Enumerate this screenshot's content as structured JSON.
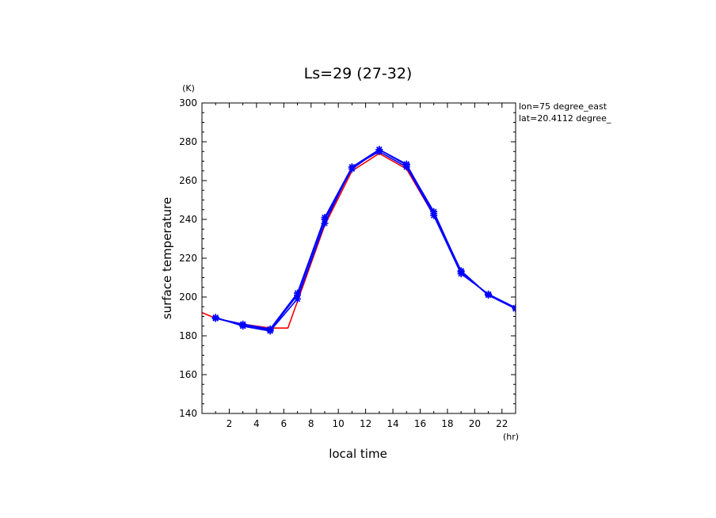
{
  "chart_data": {
    "type": "line",
    "title": "Ls=29 (27-32)",
    "xlabel": "local time",
    "ylabel": "surface temperature",
    "x_unit": "(hr)",
    "y_unit": "(K)",
    "xlim": [
      0,
      23
    ],
    "ylim": [
      140,
      300
    ],
    "x_ticks": [
      2,
      4,
      6,
      8,
      10,
      12,
      14,
      16,
      18,
      20,
      22
    ],
    "y_ticks": [
      140,
      160,
      180,
      200,
      220,
      240,
      260,
      280,
      300
    ],
    "grid": false,
    "annotations": [
      "lon=75 degree_east",
      "lat=20.4112 degree_"
    ],
    "series": [
      {
        "color": "#ff0000",
        "marker": "none",
        "x": [
          0,
          1,
          3,
          5,
          6.3,
          9,
          11,
          13,
          15,
          17,
          19,
          21,
          23
        ],
        "y": [
          192,
          189,
          186,
          184,
          184,
          237,
          265,
          274,
          266,
          242,
          213,
          201,
          194
        ]
      },
      {
        "color": "#0000ff",
        "marker": "star",
        "x": [
          1,
          3,
          5,
          7,
          9,
          11,
          13,
          15,
          17,
          19,
          21,
          23
        ],
        "y": [
          189,
          185.5,
          183,
          201,
          240,
          266,
          276,
          268,
          244,
          213,
          201,
          194
        ]
      },
      {
        "color": "#0000ff",
        "marker": "star",
        "x": [
          1,
          3,
          5,
          7,
          9,
          11,
          13,
          15,
          17,
          19,
          21,
          23
        ],
        "y": [
          189.5,
          185,
          182.5,
          199,
          238,
          267,
          275,
          267,
          242,
          212,
          201.5,
          194.5
        ]
      },
      {
        "color": "#0000ff",
        "marker": "star",
        "x": [
          1,
          3,
          5,
          7,
          9,
          11,
          13,
          15,
          17,
          19,
          21,
          23
        ],
        "y": [
          189,
          186,
          183.5,
          202,
          241,
          267,
          276,
          268.5,
          243,
          213.5,
          201,
          194
        ]
      }
    ]
  }
}
